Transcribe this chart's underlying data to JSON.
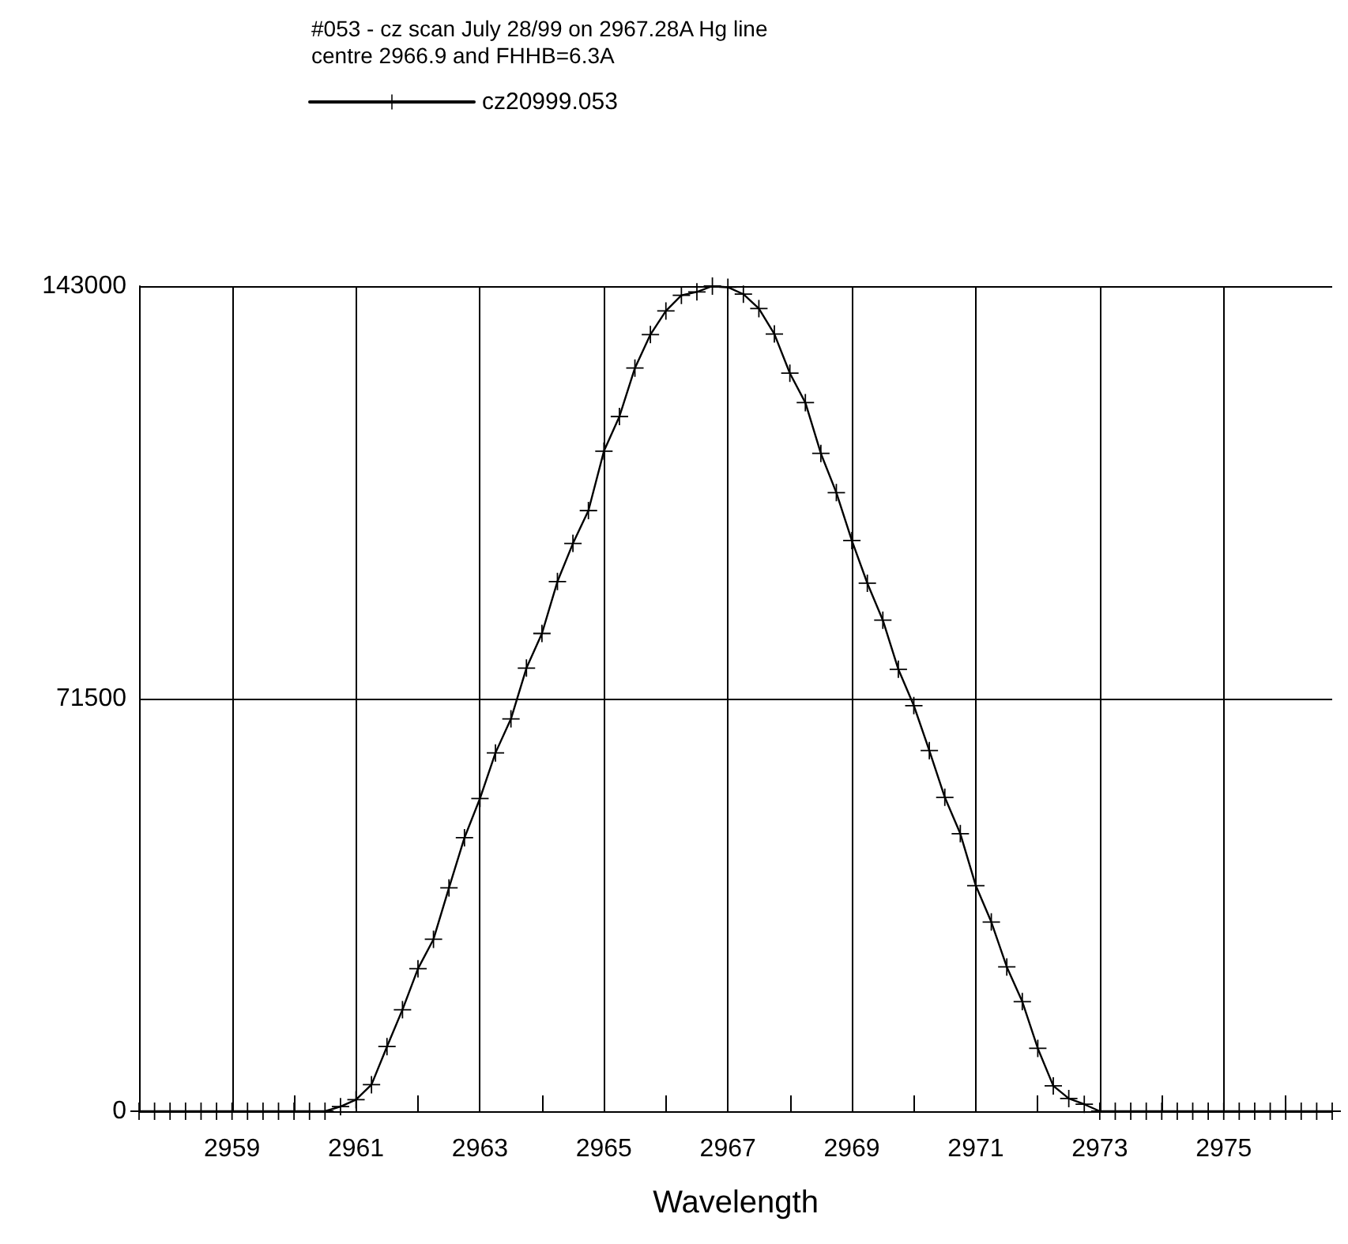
{
  "chart_data": {
    "type": "line",
    "title": "#053 - cz scan July 28/99 on 2967.28A Hg line",
    "subtitle": "centre 2966.9 and FHHB=6.3A",
    "xlabel": "Wavelength",
    "x": [
      2957.5,
      2957.75,
      2958,
      2958.25,
      2958.5,
      2958.75,
      2959,
      2959.25,
      2959.5,
      2959.75,
      2960,
      2960.25,
      2960.5,
      2960.75,
      2961,
      2961.25,
      2961.5,
      2961.75,
      2962,
      2962.25,
      2962.5,
      2962.75,
      2963,
      2963.25,
      2963.5,
      2963.75,
      2964,
      2964.25,
      2964.5,
      2964.75,
      2965,
      2965.25,
      2965.5,
      2965.75,
      2966,
      2966.25,
      2966.5,
      2966.75,
      2967,
      2967.25,
      2967.5,
      2967.75,
      2968,
      2968.25,
      2968.5,
      2968.75,
      2969,
      2969.25,
      2969.5,
      2969.75,
      2970,
      2970.25,
      2970.5,
      2970.75,
      2971,
      2971.25,
      2971.5,
      2971.75,
      2972,
      2972.25,
      2972.5,
      2972.75,
      2973,
      2973.25,
      2973.5,
      2973.75,
      2974,
      2974.25,
      2974.5,
      2974.75,
      2975,
      2975.25,
      2975.5,
      2975.75,
      2976,
      2976.25,
      2976.5,
      2976.75
    ],
    "series": [
      {
        "name": "cz20999.053",
        "color": "#000000",
        "values": [
          0,
          0,
          0,
          0,
          0,
          0,
          0,
          0,
          0,
          0,
          0,
          0,
          0,
          800,
          2000,
          4600,
          11200,
          17600,
          24700,
          29800,
          38700,
          47400,
          54200,
          62100,
          68000,
          76800,
          82800,
          91800,
          98400,
          104100,
          114400,
          120400,
          128800,
          134600,
          138700,
          141400,
          142000,
          143000,
          142800,
          141600,
          139100,
          134700,
          127900,
          122800,
          114000,
          107200,
          98900,
          91500,
          85100,
          76600,
          70300,
          62500,
          54400,
          48100,
          39100,
          32800,
          25000,
          19000,
          10900,
          4400,
          2200,
          1200,
          0,
          0,
          0,
          0,
          0,
          0,
          0,
          0,
          0,
          0,
          0,
          0,
          0,
          0,
          0,
          0
        ]
      }
    ],
    "xlim": [
      2957.5,
      2976.75
    ],
    "xticks": [
      2959,
      {
        "value": 2960,
        "label": null
      },
      2961,
      {
        "value": 2962,
        "label": null
      },
      2963,
      {
        "value": 2964,
        "label": null
      },
      2965,
      {
        "value": 2966,
        "label": null
      },
      2967,
      {
        "value": 2968,
        "label": null
      },
      2969,
      {
        "value": 2970,
        "label": null
      },
      2971,
      {
        "value": 2972,
        "label": null
      },
      2973,
      {
        "value": 2974,
        "label": null
      },
      2975,
      {
        "value": 2976,
        "label": null
      }
    ],
    "ylim": [
      0,
      143000
    ],
    "yticks": [
      0,
      71500,
      143000
    ],
    "grid": true,
    "legend": "top left",
    "marker": "cross",
    "line_style": "solid"
  }
}
